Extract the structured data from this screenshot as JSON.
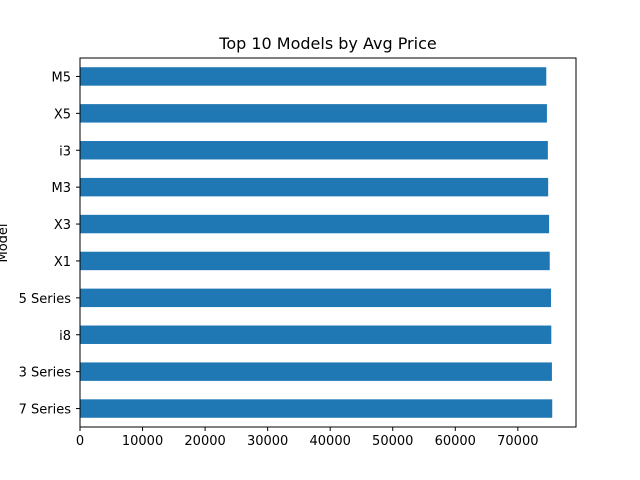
{
  "chart_data": {
    "type": "bar",
    "orientation": "horizontal",
    "title": "Top 10 Models by Avg Price",
    "xlabel": "",
    "ylabel": "Model",
    "categories": [
      "M5",
      "X5",
      "i3",
      "M3",
      "X3",
      "X1",
      "5 Series",
      "i8",
      "3 Series",
      "7 Series"
    ],
    "values": [
      74550,
      74650,
      74800,
      74850,
      75000,
      75100,
      75300,
      75350,
      75450,
      75500
    ],
    "xlim": [
      0,
      79300
    ],
    "xticks": [
      0,
      10000,
      20000,
      30000,
      40000,
      50000,
      60000,
      70000
    ],
    "xtick_labels": [
      "0",
      "10000",
      "20000",
      "30000",
      "40000",
      "50000",
      "60000",
      "70000"
    ],
    "bar_color": "#1f77b4",
    "grid": false,
    "legend": "none"
  }
}
